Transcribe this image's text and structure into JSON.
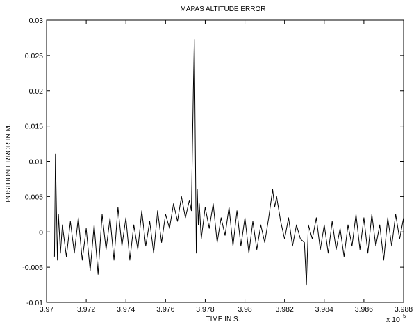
{
  "chart_data": {
    "type": "line",
    "title": "MAPAS ALTITUDE ERROR",
    "xlabel": "TIME IN S.",
    "ylabel": "POSITION ERROR IN M.",
    "x_exponent_label": "x 10",
    "x_exponent_power": "5",
    "xlim": [
      3.97,
      3.988
    ],
    "ylim": [
      -0.01,
      0.03
    ],
    "x_ticks": [
      "3.97",
      "3.972",
      "3.974",
      "3.976",
      "3.978",
      "3.98",
      "3.982",
      "3.984",
      "3.986",
      "3.988"
    ],
    "y_ticks": [
      "-0.01",
      "-0.005",
      "0",
      "0.005",
      "0.01",
      "0.015",
      "0.02",
      "0.025",
      "0.03"
    ],
    "grid": false,
    "series": [
      {
        "color": "#000000",
        "x": [
          3.9704,
          3.97045,
          3.9705,
          3.97055,
          3.9706,
          3.9707,
          3.9708,
          3.971,
          3.9712,
          3.9714,
          3.9716,
          3.9718,
          3.972,
          3.9722,
          3.9724,
          3.9726,
          3.9728,
          3.973,
          3.9732,
          3.9734,
          3.9736,
          3.9738,
          3.974,
          3.9742,
          3.9744,
          3.9746,
          3.9748,
          3.975,
          3.9752,
          3.9754,
          3.9756,
          3.9758,
          3.976,
          3.9762,
          3.9764,
          3.9766,
          3.9768,
          3.977,
          3.9772,
          3.9773,
          3.9774,
          3.97745,
          3.9775,
          3.97755,
          3.9776,
          3.97765,
          3.9777,
          3.9778,
          3.978,
          3.9782,
          3.9784,
          3.9786,
          3.9788,
          3.979,
          3.9792,
          3.9794,
          3.9796,
          3.9798,
          3.98,
          3.9802,
          3.9804,
          3.9806,
          3.9808,
          3.981,
          3.9812,
          3.9814,
          3.9815,
          3.9816,
          3.9818,
          3.982,
          3.9822,
          3.9824,
          3.9826,
          3.9828,
          3.983,
          3.9831,
          3.9832,
          3.9834,
          3.9836,
          3.9838,
          3.984,
          3.9842,
          3.9844,
          3.9846,
          3.9848,
          3.985,
          3.9852,
          3.9854,
          3.9856,
          3.9858,
          3.986,
          3.9862,
          3.9864,
          3.9866,
          3.9868,
          3.987,
          3.9872,
          3.9874,
          3.9876,
          3.9878,
          3.988
        ],
        "y": [
          -0.0035,
          0.011,
          0.003,
          -0.004,
          0.0025,
          -0.003,
          0.001,
          -0.0035,
          0.0015,
          -0.003,
          0.002,
          -0.004,
          0.0005,
          -0.0055,
          0.001,
          -0.006,
          0.0025,
          -0.0025,
          0.002,
          -0.004,
          0.0035,
          -0.002,
          0.002,
          -0.004,
          0.001,
          -0.0025,
          0.003,
          -0.002,
          0.0015,
          -0.003,
          0.003,
          -0.0015,
          0.0025,
          0.0005,
          0.004,
          0.0015,
          0.005,
          0.002,
          0.0045,
          0.003,
          0.02,
          0.0273,
          0.012,
          -0.003,
          0.006,
          0.001,
          0.004,
          -0.001,
          0.0035,
          0.0005,
          0.004,
          -0.0015,
          0.002,
          -0.0005,
          0.0035,
          -0.002,
          0.003,
          -0.002,
          0.002,
          -0.003,
          0.0015,
          -0.0025,
          0.001,
          -0.0015,
          0.002,
          0.006,
          0.0035,
          0.005,
          0.0015,
          -0.001,
          0.002,
          -0.002,
          0.001,
          -0.001,
          -0.0015,
          -0.0075,
          0.001,
          -0.001,
          0.002,
          -0.0025,
          0.001,
          -0.003,
          0.0015,
          -0.0025,
          0.0005,
          -0.0035,
          0.001,
          -0.002,
          0.0025,
          -0.0025,
          0.002,
          -0.003,
          0.0025,
          -0.002,
          0.001,
          -0.004,
          0.002,
          -0.002,
          0.0025,
          -0.001,
          0.002
        ]
      }
    ]
  }
}
